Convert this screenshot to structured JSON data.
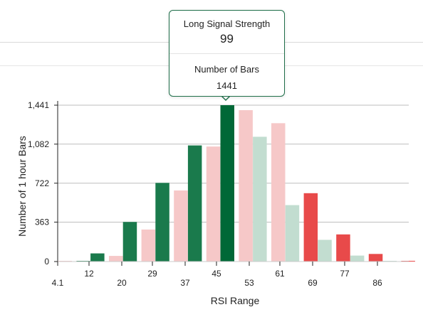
{
  "colors": {
    "long_selected": "#006837",
    "long": "#1a7a4c",
    "long_faded": "#c2ddd0",
    "short": "#e84a4a",
    "short_faded": "#f6c8c8",
    "grid": "#e6e6e6",
    "axis": "#222222"
  },
  "tooltip": {
    "label1": "Long Signal Strength",
    "value1": "99",
    "label2": "Number of Bars",
    "value2": "1441"
  },
  "chart_data": {
    "type": "bar",
    "xlabel": "RSI Range",
    "ylabel": "Number of 1 hour Bars",
    "ylim": [
      0,
      1441
    ],
    "y_ticks": [
      "0",
      "363",
      "722",
      "1,082",
      "1,441"
    ],
    "y_tick_values": [
      0,
      363,
      722,
      1082,
      1441
    ],
    "x_ticks": [
      "4.1",
      "12",
      "20",
      "29",
      "37",
      "45",
      "53",
      "61",
      "69",
      "77",
      "86"
    ],
    "grid": "horizontal",
    "bars": [
      {
        "range": "4.1",
        "series": "short",
        "value": 2,
        "style": "short_faded"
      },
      {
        "range": "4.1–12",
        "series": "long",
        "value": 4,
        "style": "long"
      },
      {
        "range": "12–20",
        "series": "long",
        "value": 75,
        "style": "long"
      },
      {
        "range": "12–20",
        "series": "short",
        "value": 52,
        "style": "short_faded"
      },
      {
        "range": "20–29",
        "series": "long",
        "value": 365,
        "style": "long"
      },
      {
        "range": "20–29",
        "series": "short",
        "value": 295,
        "style": "short_faded"
      },
      {
        "range": "29–37",
        "series": "long",
        "value": 725,
        "style": "long"
      },
      {
        "range": "29–37",
        "series": "short",
        "value": 655,
        "style": "short_faded"
      },
      {
        "range": "37–45",
        "series": "long",
        "value": 1070,
        "style": "long"
      },
      {
        "range": "37–45",
        "series": "short",
        "value": 1060,
        "style": "short_faded"
      },
      {
        "range": "45–53",
        "series": "long",
        "value": 1441,
        "style": "long_selected"
      },
      {
        "range": "45–53",
        "series": "short",
        "value": 1395,
        "style": "short_faded"
      },
      {
        "range": "53–61",
        "series": "long",
        "value": 1150,
        "style": "long_faded"
      },
      {
        "range": "53–61",
        "series": "short",
        "value": 1275,
        "style": "short_faded"
      },
      {
        "range": "61–69",
        "series": "long",
        "value": 520,
        "style": "long_faded"
      },
      {
        "range": "61–69",
        "series": "short",
        "value": 630,
        "style": "short"
      },
      {
        "range": "69–77",
        "series": "long",
        "value": 200,
        "style": "long_faded"
      },
      {
        "range": "69–77",
        "series": "short",
        "value": 250,
        "style": "short"
      },
      {
        "range": "77–86",
        "series": "long",
        "value": 55,
        "style": "long_faded"
      },
      {
        "range": "77–86",
        "series": "short",
        "value": 70,
        "style": "short"
      },
      {
        "range": "86+",
        "series": "long",
        "value": 3,
        "style": "long_faded"
      },
      {
        "range": "86+",
        "series": "short",
        "value": 3,
        "style": "short"
      }
    ]
  }
}
